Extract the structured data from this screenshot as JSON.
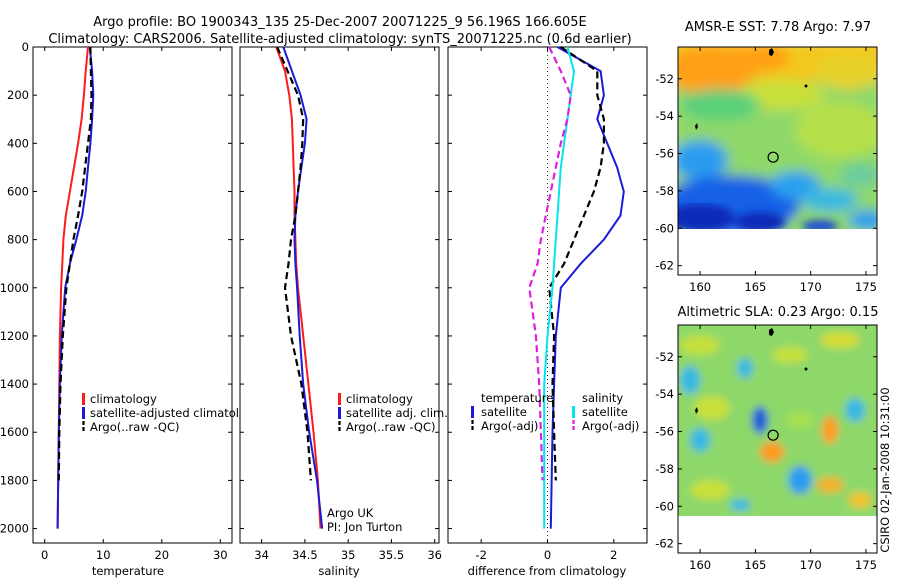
{
  "header": {
    "title_line1": "Argo profile: BO 1900343_135 25-Dec-2007 20071225_9 56.196S 166.605E",
    "title_line2": "Climatology: CARS2006. Satellite-adjusted climatology: synTS_20071225.nc (0.6d earlier)"
  },
  "credit": "CSIRO 02-Jan-2008 10:31:00",
  "colors": {
    "climatology": "#ff1a1a",
    "satellite": "#1a1ad9",
    "argo": "#000000",
    "salinity_sat": "#00e5ee",
    "salinity_argo": "#e020e0"
  },
  "chart_data": [
    {
      "type": "line",
      "id": "temperature_profile",
      "xlabel": "temperature",
      "ylabel": "",
      "xlim": [
        -2,
        32
      ],
      "ylim": [
        2060,
        0
      ],
      "xticks": [
        "0",
        "10",
        "20",
        "30"
      ],
      "yticks": [
        "0",
        "200",
        "400",
        "600",
        "800",
        "1000",
        "1200",
        "1400",
        "1600",
        "1800",
        "2000"
      ],
      "legend": [
        "climatology",
        "satellite-adjusted climatolog",
        "Argo(..raw -QC)"
      ],
      "legend_position": "lower-right",
      "series": [
        {
          "name": "climatology",
          "style": "solid",
          "color_key": "climatology",
          "x": [
            7.4,
            7.0,
            6.7,
            6.3,
            5.7,
            5.0,
            4.3,
            3.6,
            3.2,
            3.0,
            2.8,
            2.6,
            2.5,
            2.4,
            2.3,
            2.2
          ],
          "y": [
            0,
            100,
            200,
            300,
            400,
            500,
            600,
            700,
            800,
            900,
            1000,
            1200,
            1400,
            1600,
            1800,
            2000
          ]
        },
        {
          "name": "satellite-adjusted climatolog",
          "style": "solid",
          "color_key": "satellite",
          "x": [
            7.7,
            8.1,
            8.3,
            8.1,
            7.8,
            7.4,
            7.0,
            6.4,
            5.4,
            4.3,
            3.5,
            2.9,
            2.6,
            2.4,
            2.3,
            2.2
          ],
          "y": [
            0,
            100,
            200,
            300,
            400,
            500,
            600,
            700,
            800,
            900,
            1000,
            1200,
            1400,
            1600,
            1800,
            2000
          ]
        },
        {
          "name": "Argo(..raw -QC)",
          "style": "dashed",
          "color_key": "argo",
          "x": [
            7.8,
            7.9,
            8.0,
            7.9,
            7.4,
            6.9,
            6.4,
            5.7,
            4.9,
            4.3,
            3.7,
            3.1,
            2.7,
            2.5,
            2.4
          ],
          "y": [
            0,
            100,
            200,
            300,
            400,
            500,
            600,
            700,
            800,
            900,
            1000,
            1200,
            1400,
            1600,
            1800
          ]
        }
      ]
    },
    {
      "type": "line",
      "id": "salinity_profile",
      "xlabel": "salinity",
      "ylabel": "",
      "xlim": [
        33.75,
        36.05
      ],
      "ylim": [
        2060,
        0
      ],
      "xticks": [
        "34",
        "34.5",
        "35",
        "35.5",
        "36"
      ],
      "legend": [
        "climatology",
        "satellite adj. clim.",
        "Argo(..raw -QC)"
      ],
      "legend_position": "lower-right",
      "annotation_lines": [
        "Argo UK",
        "PI: Jon Turton"
      ],
      "series": [
        {
          "name": "climatology",
          "style": "solid",
          "color_key": "climatology",
          "x": [
            34.17,
            34.27,
            34.32,
            34.35,
            34.36,
            34.37,
            34.38,
            34.38,
            34.39,
            34.4,
            34.42,
            34.48,
            34.54,
            34.6,
            34.65,
            34.68
          ],
          "y": [
            0,
            100,
            200,
            300,
            400,
            500,
            600,
            700,
            800,
            900,
            1000,
            1200,
            1400,
            1600,
            1800,
            2000
          ]
        },
        {
          "name": "satellite adj. clim.",
          "style": "solid",
          "color_key": "satellite",
          "x": [
            34.25,
            34.35,
            34.45,
            34.52,
            34.5,
            34.46,
            34.42,
            34.39,
            34.38,
            34.39,
            34.41,
            34.44,
            34.48,
            34.55,
            34.64,
            34.7
          ],
          "y": [
            0,
            100,
            200,
            300,
            400,
            500,
            600,
            700,
            800,
            900,
            1000,
            1200,
            1400,
            1600,
            1800,
            2000
          ]
        },
        {
          "name": "Argo(..raw -QC)",
          "style": "dashed",
          "color_key": "argo",
          "x": [
            34.18,
            34.3,
            34.42,
            34.48,
            34.47,
            34.45,
            34.42,
            34.39,
            34.34,
            34.31,
            34.27,
            34.34,
            34.46,
            34.53,
            34.57
          ],
          "y": [
            0,
            100,
            200,
            300,
            400,
            500,
            600,
            700,
            800,
            900,
            1000,
            1200,
            1400,
            1600,
            1800
          ]
        }
      ]
    },
    {
      "type": "line",
      "id": "difference_profile",
      "xlabel": "difference from climatology",
      "ylabel": "",
      "xlim": [
        -3,
        3
      ],
      "ylim": [
        2060,
        0
      ],
      "xticks": [
        "-2",
        "0",
        "2"
      ],
      "legend_left_title": "temperature",
      "legend_right_title": "salinity",
      "legend_left": [
        "satellite",
        "Argo(-adj)"
      ],
      "legend_right": [
        "satellite",
        "Argo(-adj)"
      ],
      "legend_position": "lower-center",
      "series": [
        {
          "name": "temperature satellite",
          "style": "solid",
          "color_key": "satellite",
          "x": [
            0.3,
            1.6,
            1.7,
            1.5,
            1.8,
            2.1,
            2.3,
            2.2,
            1.7,
            1.0,
            0.4,
            0.25,
            0.2,
            0.15,
            0.1
          ],
          "y": [
            0,
            100,
            200,
            300,
            400,
            500,
            600,
            700,
            800,
            900,
            1000,
            1200,
            1400,
            1600,
            2000
          ]
        },
        {
          "name": "temperature Argo(-adj)",
          "style": "dashed",
          "color_key": "argo",
          "x": [
            0.4,
            1.5,
            1.5,
            1.7,
            1.7,
            1.6,
            1.4,
            1.1,
            0.8,
            0.5,
            0.05,
            0.2,
            0.15,
            0.2,
            0.25
          ],
          "y": [
            0,
            100,
            200,
            300,
            400,
            500,
            600,
            700,
            800,
            900,
            1000,
            1200,
            1400,
            1600,
            1800
          ]
        },
        {
          "name": "salinity satellite",
          "style": "solid",
          "color_key": "salinity_sat",
          "x": [
            0.6,
            0.8,
            0.7,
            0.6,
            0.5,
            0.4,
            0.35,
            0.3,
            0.25,
            0.2,
            0.15,
            0.0,
            -0.1,
            -0.1,
            -0.1
          ],
          "y": [
            0,
            100,
            200,
            300,
            400,
            500,
            600,
            700,
            800,
            900,
            1000,
            1200,
            1400,
            1600,
            2000
          ]
        },
        {
          "name": "salinity Argo(-adj)",
          "style": "dashed",
          "color_key": "salinity_argo",
          "x": [
            0.05,
            0.4,
            0.7,
            0.6,
            0.4,
            0.25,
            0.1,
            -0.05,
            -0.2,
            -0.3,
            -0.55,
            -0.35,
            -0.25,
            -0.2,
            -0.15
          ],
          "y": [
            0,
            100,
            200,
            300,
            400,
            500,
            600,
            700,
            800,
            900,
            1000,
            1200,
            1400,
            1600,
            1800
          ]
        }
      ]
    },
    {
      "type": "heatmap",
      "id": "sst_map",
      "title": "AMSR-E SST: 7.78 Argo: 7.97",
      "xlim": [
        158,
        176
      ],
      "ylim": [
        -62.5,
        -50.3
      ],
      "xticks": [
        "160",
        "165",
        "170",
        "175"
      ],
      "yticks": [
        "-52",
        "-54",
        "-56",
        "-58",
        "-60",
        "-62"
      ],
      "data_extent_ylim": [
        -60,
        -50.3
      ],
      "float_position": [
        166.605,
        -56.196
      ]
    },
    {
      "type": "heatmap",
      "id": "sla_map",
      "title": "Altimetric SLA: 0.23 Argo: 0.15",
      "xlim": [
        158,
        176
      ],
      "ylim": [
        -62.5,
        -50.3
      ],
      "xticks": [
        "160",
        "165",
        "170",
        "175"
      ],
      "yticks": [
        "-52",
        "-54",
        "-56",
        "-58",
        "-60",
        "-62"
      ],
      "data_extent_ylim": [
        -60,
        -50.3
      ],
      "float_position": [
        166.605,
        -56.196
      ]
    }
  ]
}
